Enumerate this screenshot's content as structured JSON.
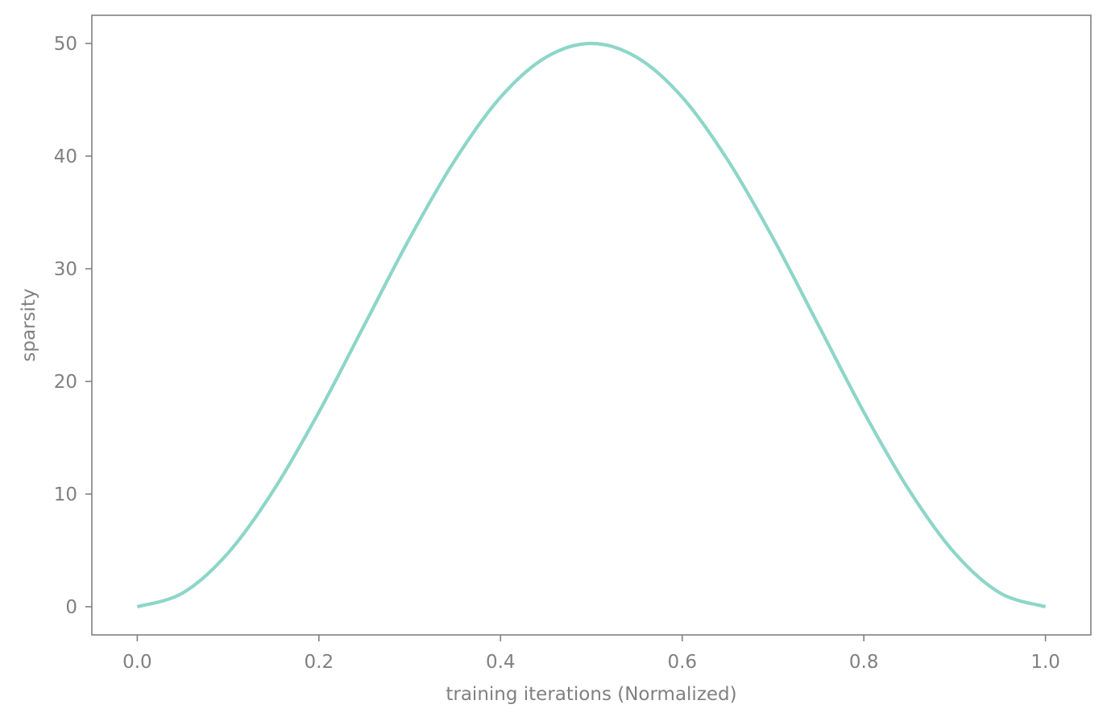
{
  "colors": {
    "series": "#8dd6c8",
    "axes": "#808080",
    "text": "#808080",
    "background": "#ffffff"
  },
  "chart_data": {
    "type": "line",
    "title": "",
    "xlabel": "training iterations (Normalized)",
    "ylabel": "sparsity",
    "xlim": [
      -0.05,
      1.05
    ],
    "ylim": [
      -2.5,
      52.5
    ],
    "xticks": [
      0.0,
      0.2,
      0.4,
      0.6,
      0.8,
      1.0
    ],
    "xtick_labels": [
      "0.0",
      "0.2",
      "0.4",
      "0.6",
      "0.8",
      "1.0"
    ],
    "yticks": [
      0,
      10,
      20,
      30,
      40,
      50
    ],
    "ytick_labels": [
      "0",
      "10",
      "20",
      "30",
      "40",
      "50"
    ],
    "grid": false,
    "legend": "none",
    "series": [
      {
        "x": [
          0.0,
          0.05,
          0.1,
          0.15,
          0.2,
          0.25,
          0.3,
          0.35,
          0.4,
          0.45,
          0.5,
          0.55,
          0.6,
          0.65,
          0.7,
          0.75,
          0.8,
          0.85,
          0.9,
          0.95,
          1.0
        ],
        "values": [
          0.0,
          1.22,
          4.77,
          10.33,
          17.28,
          25.0,
          32.72,
          39.67,
          45.23,
          48.77,
          50.0,
          48.77,
          45.23,
          39.67,
          32.72,
          25.0,
          17.28,
          10.33,
          4.77,
          1.22,
          0.0
        ]
      }
    ]
  }
}
